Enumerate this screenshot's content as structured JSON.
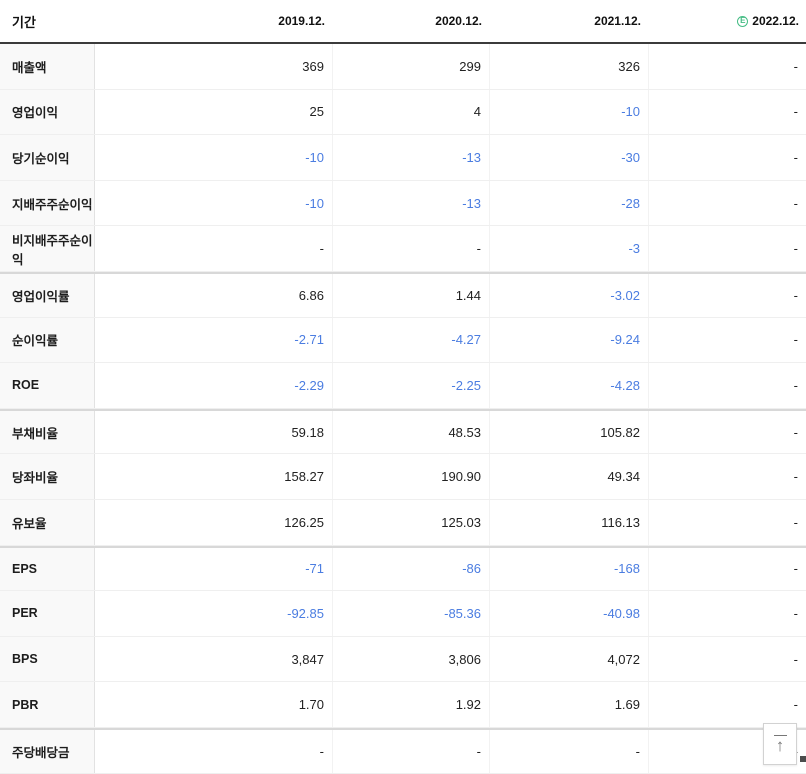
{
  "header": {
    "period_label": "기간",
    "columns": [
      {
        "label": "2019.12."
      },
      {
        "label": "2020.12."
      },
      {
        "label": "2021.12."
      },
      {
        "label": "2022.12.",
        "badge": "E"
      }
    ]
  },
  "sections": [
    {
      "rows": [
        {
          "label": "매출액",
          "values": [
            "369",
            "299",
            "326",
            "-"
          ]
        },
        {
          "label": "영업이익",
          "values": [
            "25",
            "4",
            "-10",
            "-"
          ]
        },
        {
          "label": "당기순이익",
          "values": [
            "-10",
            "-13",
            "-30",
            "-"
          ]
        },
        {
          "label": "지배주주순이익",
          "values": [
            "-10",
            "-13",
            "-28",
            "-"
          ]
        },
        {
          "label": "비지배주주순이익",
          "values": [
            "-",
            "-",
            "-3",
            "-"
          ]
        }
      ]
    },
    {
      "rows": [
        {
          "label": "영업이익률",
          "values": [
            "6.86",
            "1.44",
            "-3.02",
            "-"
          ]
        },
        {
          "label": "순이익률",
          "values": [
            "-2.71",
            "-4.27",
            "-9.24",
            "-"
          ]
        },
        {
          "label": "ROE",
          "values": [
            "-2.29",
            "-2.25",
            "-4.28",
            "-"
          ]
        }
      ]
    },
    {
      "rows": [
        {
          "label": "부채비율",
          "values": [
            "59.18",
            "48.53",
            "105.82",
            "-"
          ]
        },
        {
          "label": "당좌비율",
          "values": [
            "158.27",
            "190.90",
            "49.34",
            "-"
          ]
        },
        {
          "label": "유보율",
          "values": [
            "126.25",
            "125.03",
            "116.13",
            "-"
          ]
        }
      ]
    },
    {
      "rows": [
        {
          "label": "EPS",
          "values": [
            "-71",
            "-86",
            "-168",
            "-"
          ]
        },
        {
          "label": "PER",
          "values": [
            "-92.85",
            "-85.36",
            "-40.98",
            "-"
          ]
        },
        {
          "label": "BPS",
          "values": [
            "3,847",
            "3,806",
            "4,072",
            "-"
          ]
        },
        {
          "label": "PBR",
          "values": [
            "1.70",
            "1.92",
            "1.69",
            "-"
          ]
        }
      ]
    },
    {
      "rows": [
        {
          "label": "주당배당금",
          "values": [
            "-",
            "-",
            "-",
            "-"
          ]
        }
      ]
    }
  ],
  "colors": {
    "negative_value": "#4b7de1",
    "estimate_badge": "#45bd85"
  },
  "scroll_top_button": {
    "icon": "↑"
  }
}
